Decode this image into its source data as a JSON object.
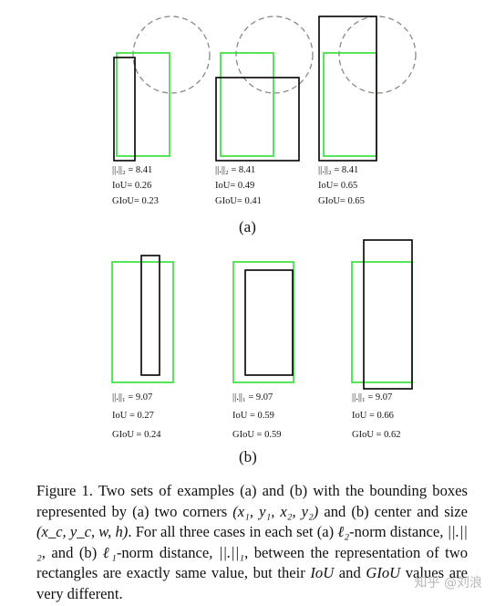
{
  "panel_a": {
    "label": "(a)",
    "cases": [
      {
        "norm": "||.||₂ = 8.41",
        "iou": "IoU= 0.26",
        "giou": "GIoU= 0.23"
      },
      {
        "norm": "||.||₂ = 8.41",
        "iou": "IoU= 0.49",
        "giou": "GIoU= 0.41"
      },
      {
        "norm": "||.||₂ = 8.41",
        "iou": "IoU= 0.65",
        "giou": "GIoU= 0.65"
      }
    ]
  },
  "panel_b": {
    "label": "(b)",
    "cases": [
      {
        "norm": "||.||₁ = 9.07",
        "iou": "IoU = 0.27",
        "giou": "GIoU = 0.24"
      },
      {
        "norm": "||.||₁ = 9.07",
        "iou": "IoU = 0.59",
        "giou": "GIoU = 0.59"
      },
      {
        "norm": "||.||₁ = 9.07",
        "iou": "IoU = 0.66",
        "giou": "GIoU = 0.62"
      }
    ]
  },
  "caption": {
    "prefix": "Figure 1.",
    "t1": "Two sets of examples (a) and (b) with the bounding boxes represented by (a) two corners",
    "m1": "(x₁, y₁, x₂, y₂)",
    "t2": "and (b) center and size",
    "m2": "(x_c, y_c, w, h)",
    "t3": ". For all three cases in each set (a)",
    "m3": "ℓ₂",
    "t4": "-norm distance,",
    "m4": "||.||₂",
    "t5": ", and (b)",
    "m5": "ℓ₁",
    "t6": "-norm distance,",
    "m6": "||.||₁",
    "t7": ", between the representation of two rectangles are exactly same value, but their",
    "m7": "IoU",
    "t8": "and",
    "m8": "GIoU",
    "t9": "values are very different."
  },
  "watermark": "知乎 @刘浪",
  "colors": {
    "ground_truth": "#2ee02e",
    "prediction": "#000000",
    "circle": "#888888"
  }
}
